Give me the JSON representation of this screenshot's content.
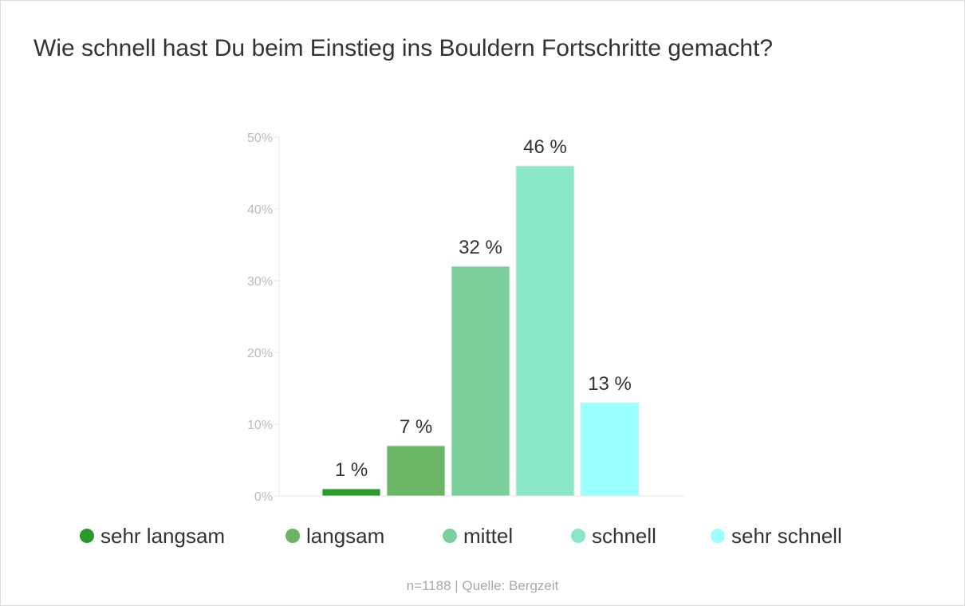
{
  "chart_data": {
    "type": "bar",
    "title": "Wie schnell hast Du beim Einstieg ins Bouldern Fortschritte gemacht?",
    "categories": [
      "sehr langsam",
      "langsam",
      "mittel",
      "schnell",
      "sehr schnell"
    ],
    "values": [
      1,
      7,
      32,
      46,
      13
    ],
    "value_labels": [
      "1 %",
      "7 %",
      "32 %",
      "46 %",
      "13 %"
    ],
    "colors": [
      "#2a9a2a",
      "#6ab466",
      "#7acf9a",
      "#8ae6c8",
      "#9bffff"
    ],
    "ylim": [
      0,
      50
    ],
    "yticks": [
      0,
      10,
      20,
      30,
      40,
      50
    ],
    "ytick_labels": [
      "0%",
      "10%",
      "20%",
      "30%",
      "40%",
      "50%"
    ],
    "grid": false,
    "legend": "bottom",
    "source": "n=1188 | Quelle: Bergzeit"
  }
}
